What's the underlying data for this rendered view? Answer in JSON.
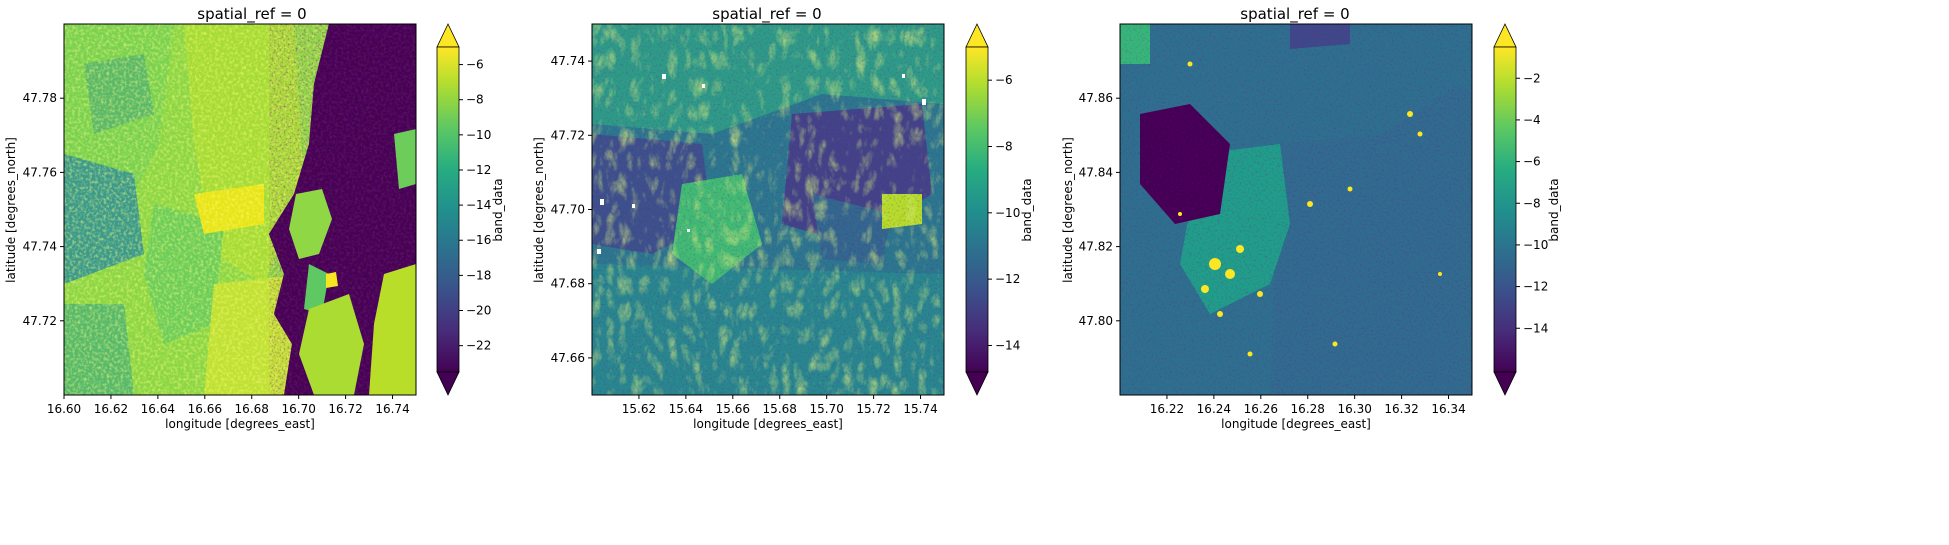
{
  "chart_data": [
    {
      "type": "heatmap",
      "title": "spatial_ref = 0",
      "xlabel": "longitude [degrees_east]",
      "ylabel": "latitude [degrees_north]",
      "xlim": [
        16.6,
        16.75
      ],
      "ylim": [
        47.7,
        47.8
      ],
      "xticks": [
        "16.60",
        "16.62",
        "16.64",
        "16.66",
        "16.68",
        "16.70",
        "16.72",
        "16.74"
      ],
      "yticks": [
        "47.72",
        "47.74",
        "47.76",
        "47.78"
      ],
      "colorbar": {
        "label": "band_data",
        "range": [
          -23.5,
          -5
        ],
        "ticks": [
          "-6",
          "-8",
          "-10",
          "-12",
          "-14",
          "-16",
          "-18",
          "-20",
          "-22"
        ],
        "extend": "both",
        "colormap": "viridis"
      }
    },
    {
      "type": "heatmap",
      "title": "spatial_ref = 0",
      "xlabel": "longitude [degrees_east]",
      "ylabel": "latitude [degrees_north]",
      "xlim": [
        15.6,
        15.75
      ],
      "ylim": [
        47.65,
        47.75
      ],
      "xticks": [
        "15.62",
        "15.64",
        "15.66",
        "15.68",
        "15.70",
        "15.72",
        "15.74"
      ],
      "yticks": [
        "47.66",
        "47.68",
        "47.70",
        "47.72",
        "47.74"
      ],
      "colorbar": {
        "label": "band_data",
        "range": [
          -14.8,
          -5
        ],
        "ticks": [
          "-6",
          "-8",
          "-10",
          "-12",
          "-14"
        ],
        "extend": "both",
        "colormap": "viridis"
      }
    },
    {
      "type": "heatmap",
      "title": "spatial_ref = 0",
      "xlabel": "longitude [degrees_east]",
      "ylabel": "latitude [degrees_north]",
      "xlim": [
        16.2,
        16.35
      ],
      "ylim": [
        47.78,
        47.88
      ],
      "xticks": [
        "16.22",
        "16.24",
        "16.26",
        "16.28",
        "16.30",
        "16.32",
        "16.34"
      ],
      "yticks": [
        "47.80",
        "47.82",
        "47.84",
        "47.86"
      ],
      "colorbar": {
        "label": "band_data",
        "range": [
          -16.1,
          -0.5
        ],
        "ticks": [
          "-2",
          "-4",
          "-6",
          "-8",
          "-10",
          "-12",
          "-14"
        ],
        "extend": "both",
        "colormap": "viridis"
      }
    }
  ]
}
